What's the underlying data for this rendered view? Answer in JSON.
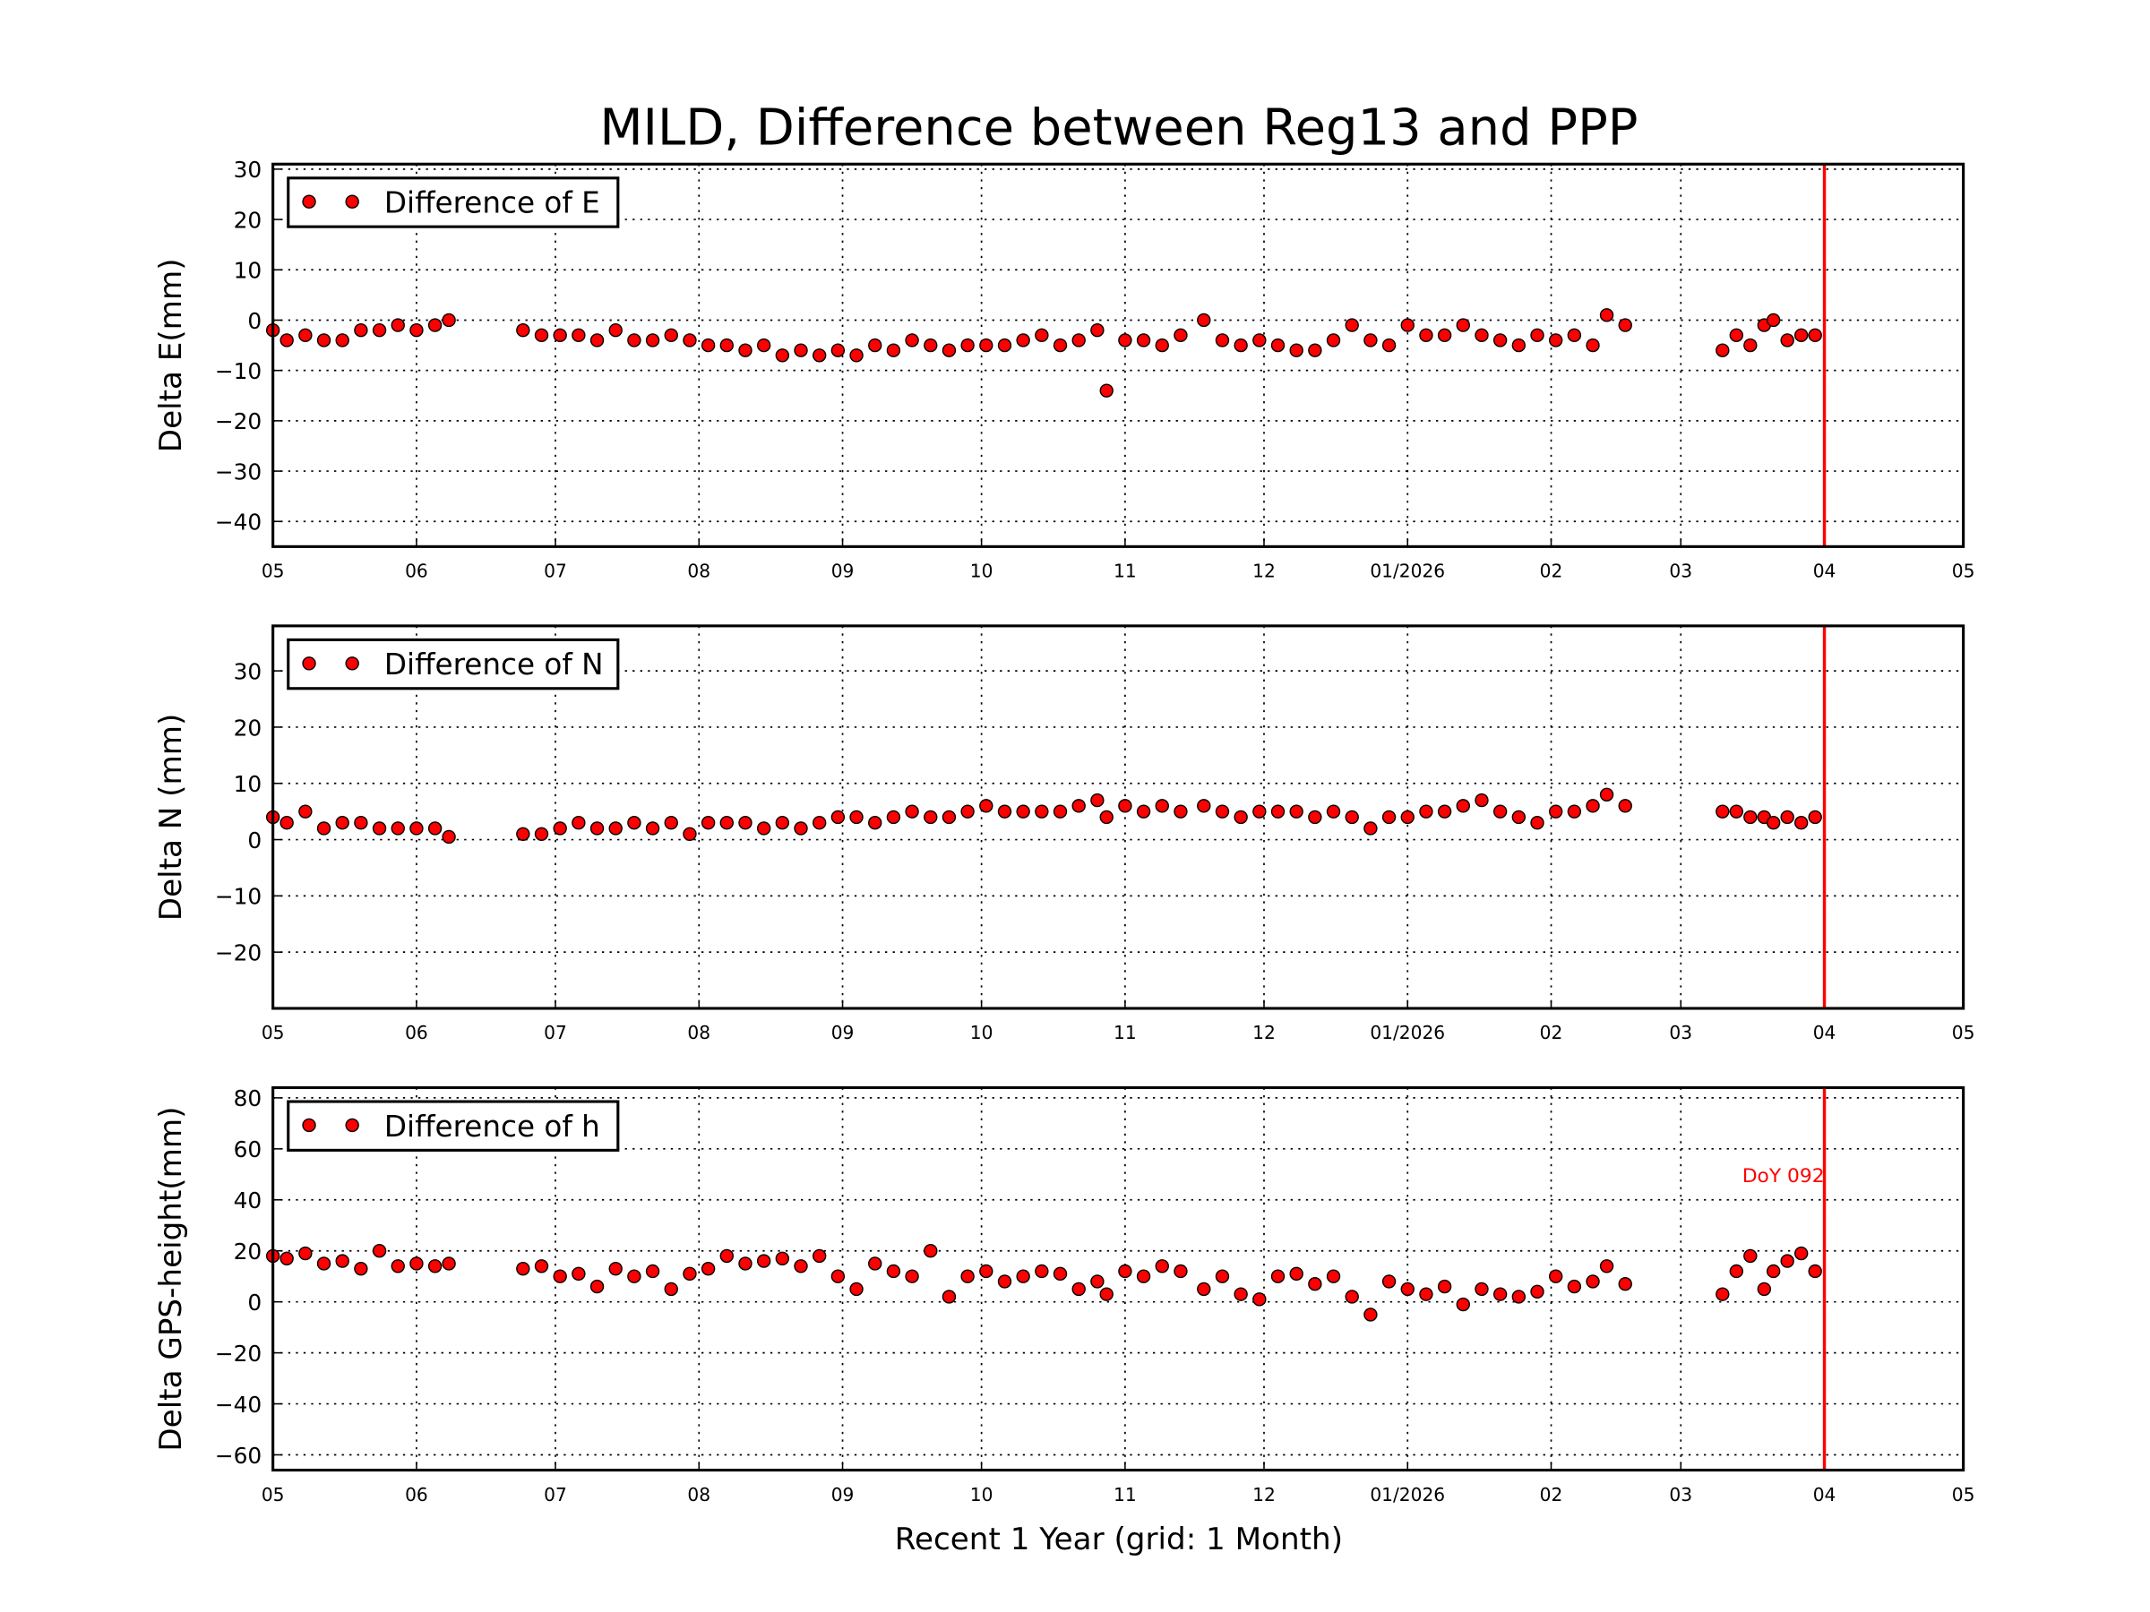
{
  "chart_data": {
    "type": "scatter",
    "title": "MILD, Difference between Reg13 and PPP",
    "xlabel": "Recent 1 Year (grid: 1 Month)",
    "xlim": [
      "2025-05-01",
      "2026-05-01"
    ],
    "x_ticks": [
      "2025-05-01",
      "2025-06-01",
      "2025-07-01",
      "2025-08-01",
      "2025-09-01",
      "2025-10-01",
      "2025-11-01",
      "2025-12-01",
      "2026-01-01",
      "2026-02-01",
      "2026-03-01",
      "2026-04-01",
      "2026-05-01"
    ],
    "x_tick_labels": [
      "05",
      "06",
      "07",
      "08",
      "09",
      "10",
      "11",
      "12",
      "01/2026",
      "02",
      "03",
      "04",
      "05"
    ],
    "grid": true,
    "marker_color": "#ff0000",
    "reference_line": {
      "date": "2026-04-01",
      "color": "#ff0000",
      "label": "DoY 092"
    },
    "dates": [
      "2025-05-01",
      "2025-05-04",
      "2025-05-08",
      "2025-05-12",
      "2025-05-16",
      "2025-05-20",
      "2025-05-24",
      "2025-05-28",
      "2025-06-01",
      "2025-06-05",
      "2025-06-08",
      "2025-06-24",
      "2025-06-28",
      "2025-07-02",
      "2025-07-06",
      "2025-07-10",
      "2025-07-14",
      "2025-07-18",
      "2025-07-22",
      "2025-07-26",
      "2025-07-30",
      "2025-08-03",
      "2025-08-07",
      "2025-08-11",
      "2025-08-15",
      "2025-08-19",
      "2025-08-23",
      "2025-08-27",
      "2025-08-31",
      "2025-09-04",
      "2025-09-08",
      "2025-09-12",
      "2025-09-16",
      "2025-09-20",
      "2025-09-24",
      "2025-09-28",
      "2025-10-02",
      "2025-10-06",
      "2025-10-10",
      "2025-10-14",
      "2025-10-18",
      "2025-10-22",
      "2025-10-26",
      "2025-10-28",
      "2025-11-01",
      "2025-11-05",
      "2025-11-09",
      "2025-11-13",
      "2025-11-18",
      "2025-11-22",
      "2025-11-26",
      "2025-11-30",
      "2025-12-04",
      "2025-12-08",
      "2025-12-12",
      "2025-12-16",
      "2025-12-20",
      "2025-12-24",
      "2025-12-28",
      "2026-01-01",
      "2026-01-05",
      "2026-01-09",
      "2026-01-13",
      "2026-01-17",
      "2026-01-21",
      "2026-01-25",
      "2026-01-29",
      "2026-02-02",
      "2026-02-06",
      "2026-02-10",
      "2026-02-13",
      "2026-02-17",
      "2026-03-10",
      "2026-03-13",
      "2026-03-16",
      "2026-03-19",
      "2026-03-21",
      "2026-03-24",
      "2026-03-27",
      "2026-03-30"
    ],
    "panels": [
      {
        "ylabel": "Delta E(mm)",
        "ylim": [
          -45,
          31
        ],
        "y_ticks": [
          30,
          20,
          10,
          0,
          -10,
          -20,
          -30,
          -40
        ],
        "y_tick_labels": [
          "30",
          "20",
          "10",
          "0",
          "−10",
          "−20",
          "−30",
          "−40"
        ],
        "legend": "Difference of E",
        "legend_position": "upper-left",
        "values": [
          -2,
          -4,
          -3,
          -4,
          -4,
          -2,
          -2,
          -1,
          -2,
          -1,
          0,
          -2,
          -3,
          -3,
          -3,
          -4,
          -2,
          -4,
          -4,
          -3,
          -4,
          -5,
          -5,
          -6,
          -5,
          -7,
          -6,
          -7,
          -6,
          -7,
          -5,
          -6,
          -4,
          -5,
          -6,
          -5,
          -5,
          -5,
          -4,
          -3,
          -5,
          -4,
          -2,
          -14,
          -4,
          -4,
          -5,
          -3,
          0,
          -4,
          -5,
          -4,
          -5,
          -6,
          -6,
          -4,
          -1,
          -4,
          -5,
          -1,
          -3,
          -3,
          -1,
          -3,
          -4,
          -5,
          -3,
          -4,
          -3,
          -5,
          1,
          -1,
          -6,
          -3,
          -5,
          -1,
          0,
          -4,
          -3,
          -3
        ]
      },
      {
        "ylabel": "Delta N (mm)",
        "ylim": [
          -30,
          38
        ],
        "y_ticks": [
          30,
          20,
          10,
          0,
          -10,
          -20
        ],
        "y_tick_labels": [
          "30",
          "20",
          "10",
          "0",
          "−10",
          "−20"
        ],
        "legend": "Difference of N",
        "legend_position": "upper-left",
        "values": [
          4,
          3,
          5,
          2,
          3,
          3,
          2,
          2,
          2,
          2,
          0.5,
          1,
          1,
          2,
          3,
          2,
          2,
          3,
          2,
          3,
          1,
          3,
          3,
          3,
          2,
          3,
          2,
          3,
          4,
          4,
          3,
          4,
          5,
          4,
          4,
          5,
          6,
          5,
          5,
          5,
          5,
          6,
          7,
          4,
          6,
          5,
          6,
          5,
          6,
          5,
          4,
          5,
          5,
          5,
          4,
          5,
          4,
          2,
          4,
          4,
          5,
          5,
          6,
          7,
          5,
          4,
          3,
          5,
          5,
          6,
          8,
          6,
          5,
          5,
          4,
          4,
          3,
          4,
          3,
          4
        ]
      },
      {
        "ylabel": "Delta GPS-height(mm)",
        "ylim": [
          -66,
          84
        ],
        "y_ticks": [
          80,
          60,
          40,
          20,
          0,
          -20,
          -40,
          -60
        ],
        "y_tick_labels": [
          "80",
          "60",
          "40",
          "20",
          "0",
          "−20",
          "−40",
          "−60"
        ],
        "legend": "Difference of h",
        "legend_position": "upper-left",
        "values": [
          18,
          17,
          19,
          15,
          16,
          13,
          20,
          14,
          15,
          14,
          15,
          13,
          14,
          10,
          11,
          6,
          13,
          10,
          12,
          5,
          11,
          13,
          18,
          15,
          16,
          17,
          14,
          18,
          10,
          5,
          15,
          12,
          10,
          20,
          2,
          10,
          12,
          8,
          10,
          12,
          11,
          5,
          8,
          3,
          12,
          10,
          14,
          12,
          5,
          10,
          3,
          1,
          10,
          11,
          7,
          10,
          2,
          -5,
          8,
          5,
          3,
          6,
          -1,
          5,
          3,
          2,
          4,
          10,
          6,
          8,
          14,
          7,
          3,
          12,
          18,
          5,
          12,
          16,
          19,
          12
        ]
      }
    ]
  }
}
